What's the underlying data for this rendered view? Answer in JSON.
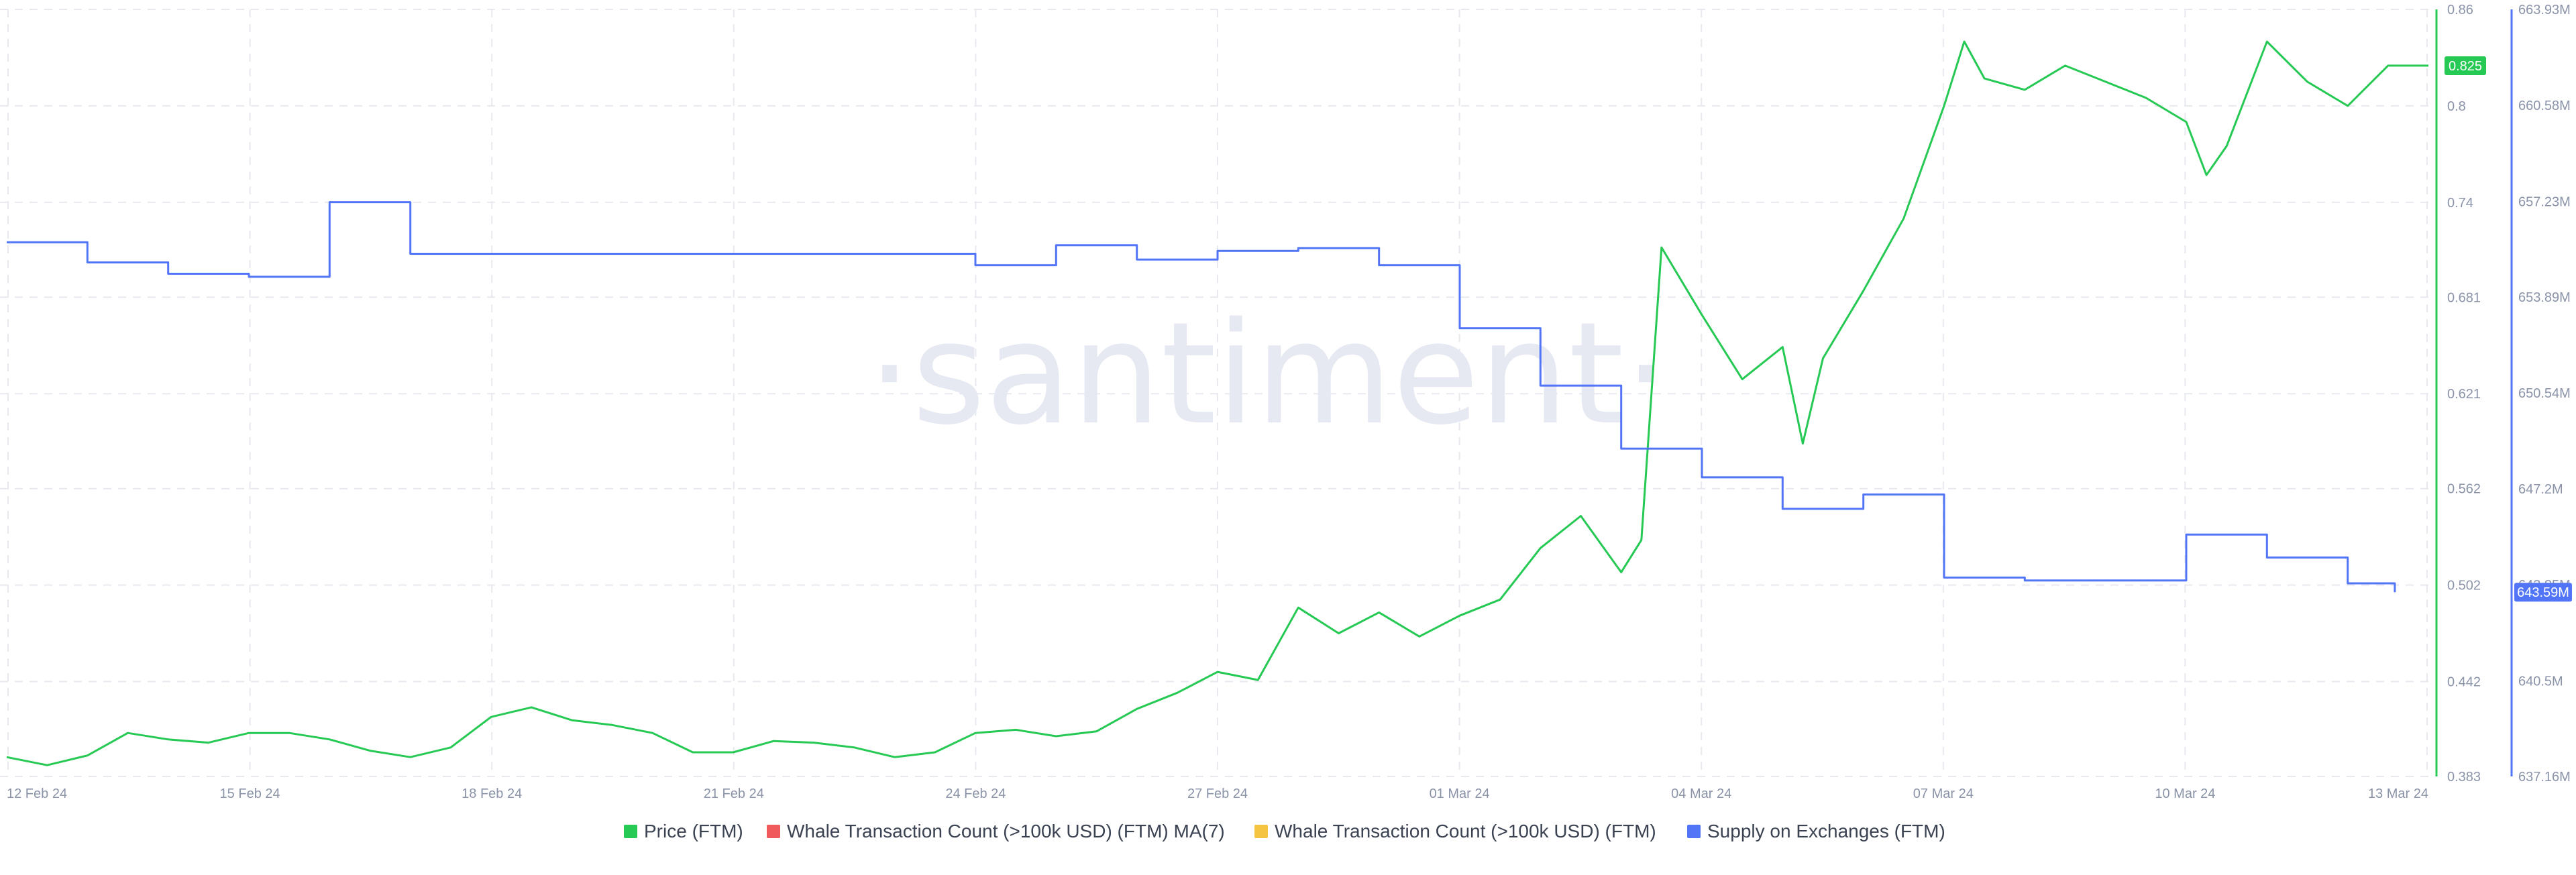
{
  "watermark": "·santiment·",
  "colors": {
    "price": "#26c953",
    "whale_ma7": "#f05a5a",
    "whale": "#f5c542",
    "supply": "#5275f7",
    "grid": "#e7e9ef",
    "axis_text": "#8a93a8"
  },
  "chart_data": {
    "type": "line",
    "title": "",
    "x_ticks": [
      "12 Feb 24",
      "15 Feb 24",
      "18 Feb 24",
      "21 Feb 24",
      "24 Feb 24",
      "27 Feb 24",
      "01 Mar 24",
      "04 Mar 24",
      "07 Mar 24",
      "10 Mar 24",
      "13 Mar 24"
    ],
    "x_range": [
      "2024-02-12",
      "2024-03-13"
    ],
    "price_axis": {
      "ticks": [
        "0.383",
        "0.442",
        "0.502",
        "0.562",
        "0.621",
        "0.681",
        "0.74",
        "0.8",
        "0.86"
      ],
      "range": [
        0.383,
        0.86
      ],
      "current_label": "0.825"
    },
    "supply_axis": {
      "ticks": [
        "637.16M",
        "640.5M",
        "643.85M",
        "647.2M",
        "650.54M",
        "653.89M",
        "657.23M",
        "660.58M",
        "663.93M"
      ],
      "range": [
        637.16,
        663.93
      ],
      "current_label": "643.59M"
    },
    "legend": [
      {
        "name": "Price (FTM)",
        "color": "#26c953"
      },
      {
        "name": "Whale Transaction Count (>100k USD) (FTM) MA(7)",
        "color": "#f05a5a"
      },
      {
        "name": "Whale Transaction Count (>100k USD) (FTM)",
        "color": "#f5c542"
      },
      {
        "name": "Supply on Exchanges (FTM)",
        "color": "#5275f7"
      }
    ],
    "series": [
      {
        "name": "Price (FTM)",
        "axis": "price",
        "x": [
          "2024-02-12",
          "2024-02-12T12:00",
          "2024-02-13",
          "2024-02-13T12:00",
          "2024-02-14",
          "2024-02-14T12:00",
          "2024-02-15",
          "2024-02-15T12:00",
          "2024-02-16",
          "2024-02-16T12:00",
          "2024-02-17",
          "2024-02-17T12:00",
          "2024-02-18",
          "2024-02-18T12:00",
          "2024-02-19",
          "2024-02-19T12:00",
          "2024-02-20",
          "2024-02-20T12:00",
          "2024-02-21",
          "2024-02-21T12:00",
          "2024-02-22",
          "2024-02-22T12:00",
          "2024-02-23",
          "2024-02-23T12:00",
          "2024-02-24",
          "2024-02-24T12:00",
          "2024-02-25",
          "2024-02-25T12:00",
          "2024-02-26",
          "2024-02-26T12:00",
          "2024-02-27",
          "2024-02-27T12:00",
          "2024-02-28",
          "2024-02-28T12:00",
          "2024-02-29",
          "2024-02-29T12:00",
          "2024-03-01",
          "2024-03-01T12:00",
          "2024-03-02",
          "2024-03-02T12:00",
          "2024-03-03",
          "2024-03-03T06:00",
          "2024-03-03T12:00",
          "2024-03-04",
          "2024-03-04T12:00",
          "2024-03-05",
          "2024-03-05T06:00",
          "2024-03-05T12:00",
          "2024-03-06",
          "2024-03-06T12:00",
          "2024-03-07",
          "2024-03-07T06:00",
          "2024-03-07T12:00",
          "2024-03-08",
          "2024-03-08T12:00",
          "2024-03-09",
          "2024-03-09T12:00",
          "2024-03-10",
          "2024-03-10T06:00",
          "2024-03-10T12:00",
          "2024-03-11",
          "2024-03-11T12:00",
          "2024-03-12",
          "2024-03-12T12:00",
          "2024-03-13"
        ],
        "values": [
          0.395,
          0.39,
          0.396,
          0.41,
          0.406,
          0.404,
          0.41,
          0.41,
          0.406,
          0.399,
          0.395,
          0.401,
          0.42,
          0.426,
          0.418,
          0.415,
          0.41,
          0.398,
          0.398,
          0.405,
          0.404,
          0.401,
          0.395,
          0.398,
          0.41,
          0.412,
          0.408,
          0.411,
          0.425,
          0.435,
          0.448,
          0.443,
          0.488,
          0.472,
          0.485,
          0.47,
          0.483,
          0.493,
          0.525,
          0.545,
          0.51,
          0.53,
          0.712,
          0.67,
          0.63,
          0.65,
          0.59,
          0.643,
          0.685,
          0.73,
          0.8,
          0.84,
          0.817,
          0.81,
          0.825,
          0.815,
          0.805,
          0.79,
          0.757,
          0.775,
          0.84,
          0.815,
          0.8,
          0.825,
          0.825
        ]
      },
      {
        "name": "Supply on Exchanges (FTM)",
        "axis": "supply",
        "step": true,
        "x": [
          "2024-02-12",
          "2024-02-13",
          "2024-02-14",
          "2024-02-15",
          "2024-02-16",
          "2024-02-17",
          "2024-02-18",
          "2024-02-19",
          "2024-02-20",
          "2024-02-21",
          "2024-02-22",
          "2024-02-23",
          "2024-02-24",
          "2024-02-25",
          "2024-02-26",
          "2024-02-27",
          "2024-02-28",
          "2024-02-29",
          "2024-03-01",
          "2024-03-02",
          "2024-03-03",
          "2024-03-04",
          "2024-03-05",
          "2024-03-06",
          "2024-03-07",
          "2024-03-08",
          "2024-03-09",
          "2024-03-10",
          "2024-03-11",
          "2024-03-12",
          "2024-03-12T14:00"
        ],
        "values": [
          655.8,
          655.1,
          654.7,
          654.6,
          657.2,
          655.4,
          655.4,
          655.4,
          655.4,
          655.4,
          655.4,
          655.4,
          655.0,
          655.7,
          655.2,
          655.5,
          655.6,
          655.0,
          652.8,
          650.8,
          648.6,
          647.6,
          646.5,
          647.0,
          644.1,
          644.0,
          644.0,
          645.6,
          644.8,
          643.9,
          643.59
        ]
      }
    ]
  }
}
